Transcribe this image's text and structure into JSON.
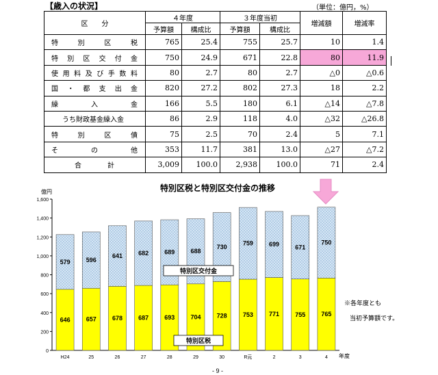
{
  "header": {
    "title": "【歳入の状況】",
    "unit": "（単位：億円，%）"
  },
  "table": {
    "col_headers": {
      "category": "区　　分",
      "fy4": "４年度",
      "fy3": "３年度当初",
      "budget": "予算額",
      "ratio": "構成比",
      "change": "増減額",
      "rate": "増減率"
    },
    "rows": [
      {
        "label": "特別区税",
        "fy4_budget": "765",
        "fy4_ratio": "25.4",
        "fy3_budget": "755",
        "fy3_ratio": "25.7",
        "change": "10",
        "rate": "1.4"
      },
      {
        "label": "特別区交付金",
        "fy4_budget": "750",
        "fy4_ratio": "24.9",
        "fy3_budget": "671",
        "fy3_ratio": "22.8",
        "change": "80",
        "rate": "11.9"
      },
      {
        "label": "使用料及び手数料",
        "fy4_budget": "80",
        "fy4_ratio": "2.7",
        "fy3_budget": "80",
        "fy3_ratio": "2.7",
        "change": "△0",
        "rate": "△0.6"
      },
      {
        "label": "国・都支出金",
        "fy4_budget": "820",
        "fy4_ratio": "27.2",
        "fy3_budget": "802",
        "fy3_ratio": "27.3",
        "change": "18",
        "rate": "2.2"
      },
      {
        "label": "繰入金",
        "fy4_budget": "166",
        "fy4_ratio": "5.5",
        "fy3_budget": "180",
        "fy3_ratio": "6.1",
        "change": "△14",
        "rate": "△7.8"
      },
      {
        "label": "うち財政基金繰入金",
        "fy4_budget": "86",
        "fy4_ratio": "2.9",
        "fy3_budget": "118",
        "fy3_ratio": "4.0",
        "change": "△32",
        "rate": "△26.8"
      },
      {
        "label": "特別区債",
        "fy4_budget": "75",
        "fy4_ratio": "2.5",
        "fy3_budget": "70",
        "fy3_ratio": "2.4",
        "change": "5",
        "rate": "7.1"
      },
      {
        "label": "その他",
        "fy4_budget": "353",
        "fy4_ratio": "11.7",
        "fy3_budget": "381",
        "fy3_ratio": "13.0",
        "change": "△27",
        "rate": "△7.2"
      },
      {
        "label": "合計",
        "fy4_budget": "3,009",
        "fy4_ratio": "100.0",
        "fy3_budget": "2,938",
        "fy3_ratio": "100.0",
        "change": "71",
        "rate": "2.4"
      }
    ]
  },
  "chart_data": {
    "type": "bar",
    "title": "特別区税と特別区交付金の推移",
    "ylabel": "億円",
    "xlabel": "年度",
    "categories": [
      "H24",
      "25",
      "26",
      "27",
      "28",
      "29",
      "30",
      "R元",
      "2",
      "3",
      "4"
    ],
    "series": [
      {
        "name": "特別区税",
        "values": [
          646,
          657,
          678,
          687,
          693,
          704,
          728,
          753,
          771,
          755,
          765
        ],
        "color": "#ffff00"
      },
      {
        "name": "特別区交付金",
        "values": [
          579,
          596,
          641,
          682,
          689,
          688,
          730,
          759,
          699,
          671,
          750
        ],
        "color": "#cfe2f3"
      }
    ],
    "ylim": [
      0,
      1600
    ],
    "yticks": [
      "0",
      "200",
      "400",
      "600",
      "800",
      "1,000",
      "1,200",
      "1,400",
      "1,600"
    ],
    "note_lines": [
      "※各年度とも",
      "当初予算額です。"
    ],
    "arrow_color": "#f7a8d8"
  },
  "footer": {
    "page_number": "- 9 -"
  }
}
